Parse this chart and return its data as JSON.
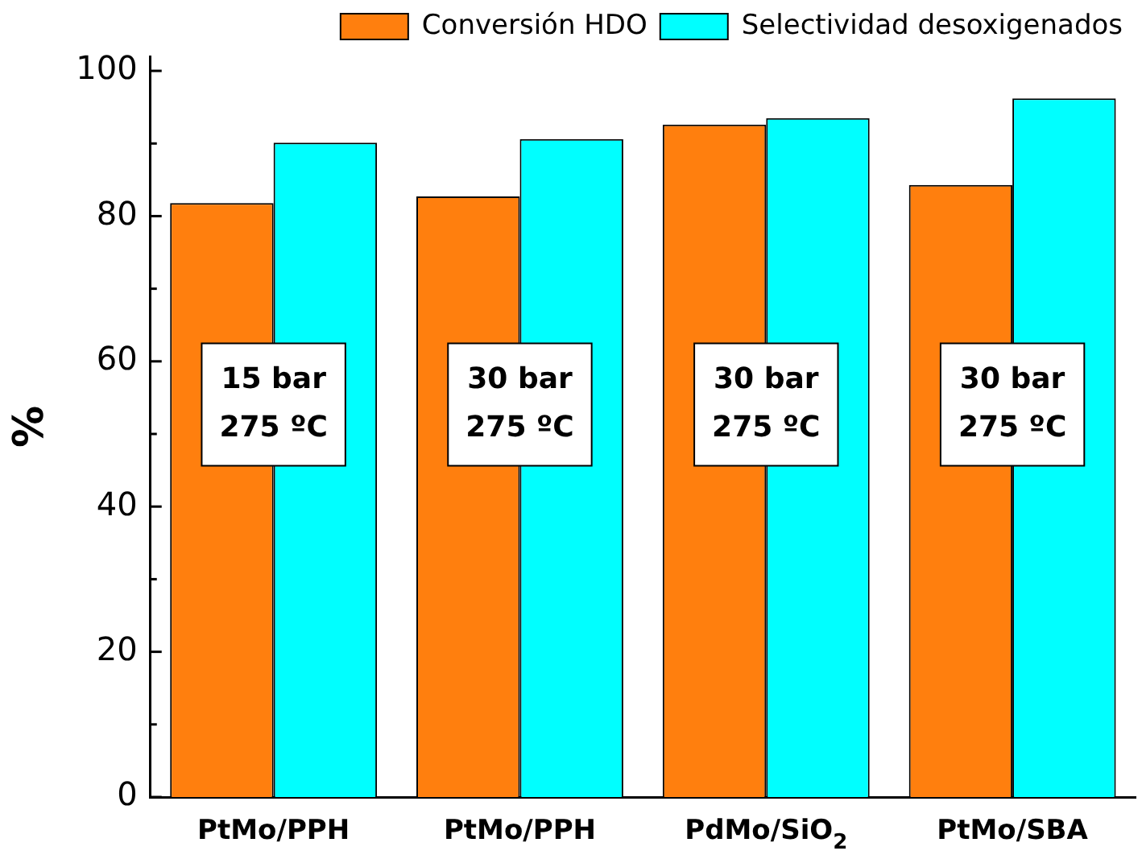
{
  "chart_data": {
    "type": "bar",
    "ylabel": "%",
    "categories": [
      "PtMo/PPH",
      "PtMo/PPH",
      "PdMo/SiO$_{2}$",
      "PtMo/SBA"
    ],
    "series": [
      {
        "name": "Conversión HDO",
        "color": "#ff7f0e",
        "values": [
          81.8,
          82.7,
          92.6,
          84.3
        ]
      },
      {
        "name": "Selectividad desoxigenados",
        "color": "#00ffff",
        "values": [
          90.1,
          90.6,
          93.5,
          96.2
        ]
      }
    ],
    "ylim": [
      0,
      102
    ],
    "yticks": [
      0,
      20,
      40,
      60,
      80,
      100
    ],
    "grid": false,
    "legend": "top right",
    "annotations": [
      "15 bar\n275 ºC",
      "30 bar\n275 ºC",
      "30 bar\n275 ºC",
      "30 bar\n275 ºC"
    ]
  }
}
